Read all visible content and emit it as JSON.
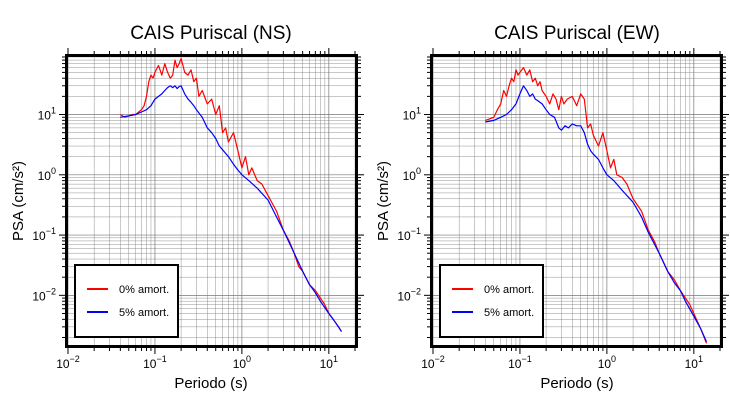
{
  "chart_data": [
    {
      "type": "line",
      "title": "CAIS Puriscal (NS)",
      "xlabel": "Periodo (s)",
      "ylabel": "PSA (cm/s²)",
      "xscale": "log",
      "yscale": "log",
      "xlim": [
        0.01,
        20
      ],
      "ylim": [
        0.0015,
        90
      ],
      "xticks": [
        0.01,
        0.1,
        1,
        10
      ],
      "yticks": [
        0.01,
        0.1,
        1,
        10
      ],
      "grid": true,
      "legend_position": "bottom-left",
      "series": [
        {
          "name": "0% amort.",
          "color": "#ff0000",
          "x": [
            0.04,
            0.045,
            0.05,
            0.055,
            0.06,
            0.065,
            0.07,
            0.075,
            0.08,
            0.085,
            0.09,
            0.095,
            0.1,
            0.11,
            0.12,
            0.13,
            0.14,
            0.15,
            0.16,
            0.17,
            0.18,
            0.19,
            0.2,
            0.22,
            0.24,
            0.26,
            0.28,
            0.3,
            0.32,
            0.35,
            0.4,
            0.45,
            0.5,
            0.55,
            0.6,
            0.65,
            0.7,
            0.8,
            0.9,
            1.0,
            1.1,
            1.2,
            1.3,
            1.5,
            1.7,
            2.0,
            2.5,
            3.0,
            3.5,
            4.0,
            4.5,
            5.0,
            6.0,
            7.0,
            8.0,
            9.0,
            10.0,
            11.0,
            12.0,
            13.0,
            14.0
          ],
          "values": [
            10,
            9,
            9.5,
            10,
            10,
            11,
            12,
            14,
            20,
            35,
            45,
            40,
            50,
            65,
            45,
            70,
            50,
            40,
            45,
            80,
            60,
            70,
            85,
            50,
            45,
            55,
            35,
            40,
            20,
            25,
            15,
            18,
            10,
            14,
            5,
            6,
            3.5,
            5,
            2.5,
            1.3,
            2,
            1.0,
            1.3,
            0.8,
            0.7,
            0.45,
            0.25,
            0.12,
            0.08,
            0.05,
            0.03,
            0.025,
            0.015,
            0.012,
            0.009,
            0.007,
            0.005,
            0.0042,
            0.0035,
            0.003,
            0.0025
          ]
        },
        {
          "name": "5% amort.",
          "color": "#0000ff",
          "x": [
            0.04,
            0.05,
            0.06,
            0.07,
            0.08,
            0.09,
            0.1,
            0.11,
            0.12,
            0.13,
            0.14,
            0.15,
            0.16,
            0.17,
            0.18,
            0.19,
            0.2,
            0.22,
            0.24,
            0.26,
            0.28,
            0.3,
            0.35,
            0.4,
            0.45,
            0.5,
            0.55,
            0.6,
            0.7,
            0.8,
            0.9,
            1.0,
            1.2,
            1.5,
            2.0,
            2.5,
            3.0,
            4.0,
            5.0,
            6.0,
            7.0,
            8.0,
            10.0,
            12.0,
            14.0
          ],
          "values": [
            9,
            9.5,
            10,
            11,
            12,
            14,
            18,
            20,
            22,
            25,
            28,
            30,
            28,
            30,
            27,
            29,
            30,
            22,
            18,
            16,
            14,
            12,
            9,
            6,
            5,
            4,
            3,
            2.6,
            2,
            1.5,
            1.2,
            1.0,
            0.8,
            0.6,
            0.38,
            0.2,
            0.12,
            0.05,
            0.025,
            0.015,
            0.011,
            0.008,
            0.005,
            0.0035,
            0.0025
          ]
        }
      ]
    },
    {
      "type": "line",
      "title": "CAIS Puriscal (EW)",
      "xlabel": "Periodo (s)",
      "ylabel": "PSA (cm/s²)",
      "xscale": "log",
      "yscale": "log",
      "xlim": [
        0.01,
        20
      ],
      "ylim": [
        0.0015,
        90
      ],
      "xticks": [
        0.01,
        0.1,
        1,
        10
      ],
      "yticks": [
        0.01,
        0.1,
        1,
        10
      ],
      "grid": true,
      "legend_position": "bottom-left",
      "series": [
        {
          "name": "0% amort.",
          "color": "#ff0000",
          "x": [
            0.04,
            0.045,
            0.05,
            0.055,
            0.06,
            0.065,
            0.07,
            0.075,
            0.08,
            0.085,
            0.09,
            0.095,
            0.1,
            0.11,
            0.12,
            0.13,
            0.14,
            0.15,
            0.16,
            0.17,
            0.18,
            0.2,
            0.22,
            0.24,
            0.26,
            0.28,
            0.3,
            0.32,
            0.35,
            0.4,
            0.45,
            0.5,
            0.55,
            0.6,
            0.65,
            0.7,
            0.8,
            0.9,
            1.0,
            1.1,
            1.2,
            1.3,
            1.5,
            1.7,
            2.0,
            2.5,
            3.0,
            3.5,
            4.0,
            5.0,
            6.0,
            7.0,
            8.0,
            9.0,
            10.0,
            12.0,
            14.0
          ],
          "values": [
            8,
            8.5,
            9,
            12,
            15,
            25,
            20,
            30,
            40,
            35,
            55,
            45,
            50,
            60,
            45,
            55,
            35,
            40,
            30,
            35,
            25,
            20,
            15,
            22,
            18,
            12,
            20,
            15,
            18,
            20,
            14,
            22,
            18,
            6,
            7,
            4.5,
            3,
            5,
            2.5,
            1.3,
            1.8,
            1.0,
            0.9,
            0.7,
            0.4,
            0.25,
            0.12,
            0.08,
            0.05,
            0.025,
            0.018,
            0.012,
            0.009,
            0.007,
            0.005,
            0.0028,
            0.0016
          ]
        },
        {
          "name": "5% amort.",
          "color": "#0000ff",
          "x": [
            0.04,
            0.05,
            0.06,
            0.07,
            0.08,
            0.09,
            0.1,
            0.11,
            0.12,
            0.13,
            0.14,
            0.15,
            0.16,
            0.18,
            0.2,
            0.22,
            0.25,
            0.28,
            0.3,
            0.33,
            0.36,
            0.4,
            0.45,
            0.5,
            0.55,
            0.6,
            0.65,
            0.7,
            0.8,
            0.9,
            1.0,
            1.2,
            1.5,
            2.0,
            2.5,
            3.0,
            4.0,
            5.0,
            6.0,
            7.0,
            8.0,
            10.0,
            12.0,
            14.0
          ],
          "values": [
            7.5,
            8,
            9,
            10,
            12,
            15,
            22,
            30,
            25,
            20,
            22,
            18,
            17,
            15,
            12,
            10,
            9,
            6,
            5.5,
            6.5,
            6,
            7,
            6.5,
            6.5,
            5,
            3.2,
            2.5,
            2.2,
            1.8,
            1.3,
            1.0,
            0.8,
            0.55,
            0.35,
            0.2,
            0.11,
            0.05,
            0.025,
            0.016,
            0.012,
            0.008,
            0.0045,
            0.0028,
            0.0017
          ]
        }
      ]
    }
  ]
}
